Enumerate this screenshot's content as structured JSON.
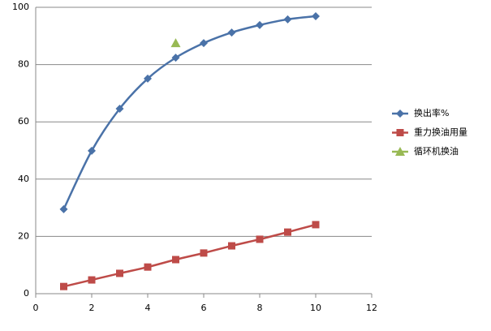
{
  "chart_data": {
    "type": "scatter",
    "smooth": true,
    "grid": true,
    "legend": "right",
    "xlim": [
      0,
      12
    ],
    "xticks": [
      0,
      2,
      4,
      6,
      8,
      10,
      12
    ],
    "ylim": [
      0,
      100
    ],
    "yticks": [
      0,
      20,
      40,
      60,
      80,
      100
    ],
    "series": [
      {
        "name": "换出率%",
        "color": "#4a72a8",
        "marker": "diamond",
        "x": [
          1,
          2,
          3,
          4,
          5,
          6,
          7,
          8,
          9,
          10
        ],
        "values": [
          29.5,
          49.9,
          64.6,
          75.1,
          82.4,
          87.5,
          91.2,
          93.8,
          95.8,
          96.9
        ]
      },
      {
        "name": "重力换油用量",
        "color": "#be4b48",
        "marker": "square",
        "x": [
          1,
          2,
          3,
          4,
          5,
          6,
          7,
          8,
          9,
          10
        ],
        "values": [
          2.5,
          4.8,
          7.1,
          9.3,
          11.9,
          14.2,
          16.7,
          19.0,
          21.5,
          24.1
        ]
      },
      {
        "name": "循环机换油",
        "color": "#98b954",
        "marker": "triangle",
        "x": [
          5
        ],
        "values": [
          87.5
        ]
      }
    ]
  }
}
